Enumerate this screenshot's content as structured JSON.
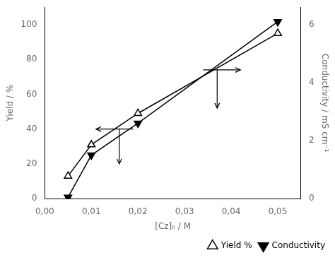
{
  "chart_data": {
    "type": "line",
    "x_label": "[Cz]₀ / M",
    "y_label": "Yield / %",
    "y2_label": "Conductivity / mS cm⁻¹",
    "x": [
      0.005,
      0.01,
      0.02,
      0.05
    ],
    "series": [
      {
        "name": "Yield %",
        "color": "black",
        "marker": "triangle-up-open",
        "values": [
          13,
          31,
          49,
          95
        ]
      },
      {
        "name": "Conductivity",
        "color": "black",
        "marker": "triangle-down",
        "axis": "y2",
        "values": [
          0.05,
          1.5,
          2.6,
          6.1
        ]
      }
    ],
    "xlim": [
      0.0,
      0.055
    ],
    "xticks": [
      {
        "value": 0.0,
        "label": "0,00"
      },
      {
        "value": 0.01,
        "label": "0,01"
      },
      {
        "value": 0.02,
        "label": "0,02"
      },
      {
        "value": 0.03,
        "label": "0,03"
      },
      {
        "value": 0.04,
        "label": "0,04"
      },
      {
        "value": 0.05,
        "label": "0,05"
      }
    ],
    "ylim": [
      0,
      110
    ],
    "yticks": [
      0,
      20,
      40,
      60,
      80,
      100
    ],
    "y2lim": [
      0,
      6.6
    ],
    "y2ticks": [
      0,
      2,
      4,
      6
    ],
    "grid": false,
    "legend": "lower right",
    "annotations": [
      {
        "type": "arrow",
        "from": [
          0.019,
          40
        ],
        "to": [
          0.011,
          40
        ]
      },
      {
        "type": "arrow",
        "from": [
          0.016,
          40
        ],
        "to": [
          0.016,
          20
        ]
      },
      {
        "type": "arrow",
        "from": [
          0.034,
          74
        ],
        "to": [
          0.042,
          74
        ]
      },
      {
        "type": "arrow",
        "from": [
          0.037,
          74
        ],
        "to": [
          0.037,
          52
        ]
      }
    ]
  }
}
